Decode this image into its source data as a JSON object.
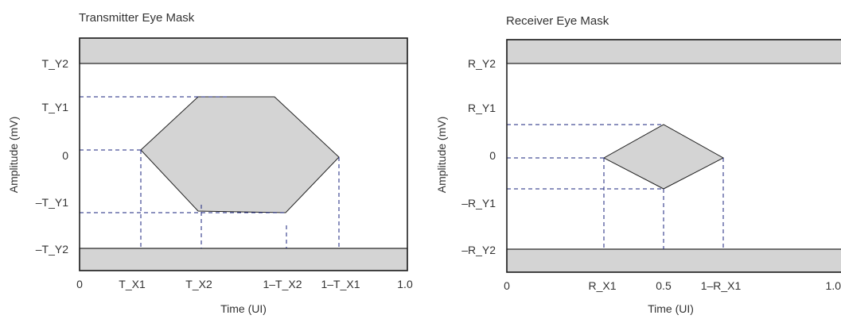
{
  "diagrams": {
    "transmitter": {
      "title": "Transmitter Eye Mask",
      "ylabel": "Amplitude (mV)",
      "xlabel": "Time (UI)",
      "y_ticks": [
        "T_Y2",
        "T_Y1",
        "0",
        "–T_Y1",
        "–T_Y2"
      ],
      "x_ticks": [
        "0",
        "T_X1",
        "T_X2",
        "1–T_X2",
        "1–T_X1",
        "1.0"
      ]
    },
    "receiver": {
      "title": "Receiver Eye Mask",
      "ylabel": "Amplitude (mV)",
      "xlabel": "Time (UI)",
      "y_ticks": [
        "R_Y2",
        "R_Y1",
        "0",
        "–R_Y1",
        "–R_Y2"
      ],
      "x_ticks": [
        "0",
        "R_X1",
        "0.5",
        "1–R_X1",
        "1.0"
      ]
    }
  },
  "colors": {
    "mask_fill": "#d4d4d4",
    "outline": "#222222",
    "guide_line": "#1a237e"
  }
}
